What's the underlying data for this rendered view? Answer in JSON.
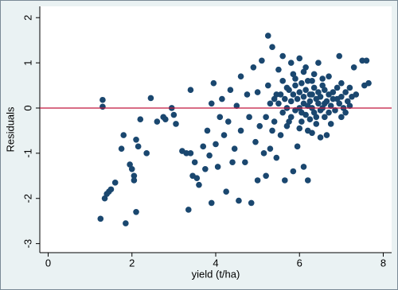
{
  "chart_data": {
    "type": "scatter",
    "x_label": "yield (t/ha)",
    "y_label": "Residuals",
    "xlim": [
      -0.2,
      8.2
    ],
    "ylim": [
      -3.2,
      2.25
    ],
    "xticks": [
      0,
      2,
      4,
      6,
      8
    ],
    "yticks": [
      -3,
      -2,
      -1,
      0,
      1,
      2
    ],
    "yline": 0,
    "yline_color": "#c0143c",
    "series": [
      {
        "color": "#1a476f",
        "x": [
          1.25,
          1.3,
          1.3,
          1.35,
          1.4,
          1.45,
          1.5,
          1.6,
          1.75,
          1.8,
          1.85,
          1.95,
          2.0,
          2.05,
          2.05,
          2.1,
          2.1,
          2.15,
          2.2,
          2.35,
          2.45,
          2.6,
          2.75,
          2.8,
          2.95,
          3.0,
          3.05,
          3.2,
          3.3,
          3.35,
          3.4,
          3.4,
          3.45,
          3.5,
          3.55,
          3.6,
          3.7,
          3.75,
          3.8,
          3.85,
          3.9,
          3.9,
          3.95,
          4.0,
          4.05,
          4.1,
          4.15,
          4.2,
          4.25,
          4.3,
          4.35,
          4.4,
          4.45,
          4.5,
          4.55,
          4.6,
          4.6,
          4.7,
          4.75,
          4.8,
          4.85,
          4.9,
          4.95,
          5.0,
          5.0,
          5.05,
          5.1,
          5.15,
          5.2,
          5.25,
          5.25,
          5.3,
          5.35,
          5.4,
          5.45,
          5.5,
          5.55,
          5.6,
          5.65,
          5.7,
          5.75,
          5.8,
          5.85,
          5.9,
          5.95,
          6.0,
          6.05,
          6.1,
          6.15,
          6.2,
          6.25,
          6.3,
          6.35,
          6.4,
          6.45,
          6.5,
          6.55,
          6.6,
          6.7,
          6.75,
          6.8,
          6.9,
          6.95,
          7.0,
          7.1,
          7.2,
          7.3,
          7.35,
          7.5,
          7.55,
          7.6,
          7.65,
          7.0,
          6.65,
          5.5,
          5.55,
          5.6,
          5.65,
          5.7,
          5.75,
          5.8,
          5.8,
          5.85,
          5.9,
          5.9,
          5.95,
          6.0,
          6.0,
          6.05,
          6.05,
          6.1,
          6.1,
          6.15,
          6.15,
          6.2,
          6.2,
          6.25,
          6.25,
          6.3,
          6.3,
          6.35,
          6.35,
          6.4,
          6.4,
          6.45,
          6.45,
          6.5,
          6.5,
          6.55,
          6.6,
          6.6,
          6.65,
          6.7,
          6.7,
          6.75,
          6.8,
          6.85,
          6.9,
          6.95,
          7.0,
          7.05,
          7.1,
          7.15,
          7.2,
          7.25,
          5.4,
          5.45,
          5.35,
          5.3,
          5.2,
          5.6,
          5.7,
          6.0,
          6.2,
          5.85,
          6.1,
          6.3,
          6.55
        ],
        "values": [
          -2.45,
          0.03,
          0.18,
          -2.0,
          -1.9,
          -1.85,
          -1.8,
          -1.65,
          -0.9,
          -0.6,
          -2.55,
          -1.25,
          -1.35,
          -1.6,
          -1.5,
          -2.3,
          -0.7,
          -0.85,
          -0.25,
          -1.0,
          0.22,
          -0.3,
          -0.2,
          -0.25,
          0.0,
          -0.15,
          -0.35,
          -0.95,
          -1.0,
          -2.25,
          -1.0,
          0.4,
          -1.5,
          -1.2,
          -1.55,
          -1.7,
          -0.85,
          -1.35,
          -0.5,
          -1.05,
          -2.1,
          0.1,
          0.55,
          -0.8,
          -1.3,
          -0.2,
          0.2,
          -0.6,
          -1.85,
          -0.3,
          0.4,
          -1.2,
          -0.9,
          0.05,
          -2.05,
          -0.5,
          0.7,
          -1.2,
          0.3,
          -0.2,
          -2.1,
          0.9,
          -0.75,
          -1.6,
          0.35,
          -0.4,
          1.05,
          -1.0,
          -1.5,
          1.6,
          0.5,
          -0.9,
          1.35,
          0.2,
          -1.1,
          0.85,
          -0.6,
          1.15,
          -1.6,
          0.45,
          -0.3,
          1.0,
          -1.4,
          0.65,
          -0.85,
          1.1,
          -0.1,
          -1.3,
          0.9,
          -1.6,
          0.3,
          -0.55,
          0.75,
          -0.2,
          1.0,
          -0.65,
          0.5,
          0.1,
          0.7,
          -0.35,
          0.35,
          0.2,
          1.15,
          0.55,
          -0.1,
          0.45,
          0.9,
          0.3,
          1.05,
          0.5,
          1.05,
          0.55,
          -0.2,
          -0.6,
          0.1,
          0.3,
          -0.1,
          0.2,
          0.0,
          0.4,
          -0.2,
          0.15,
          0.3,
          -0.05,
          0.5,
          0.2,
          0.0,
          0.35,
          -0.3,
          0.55,
          0.1,
          0.25,
          -0.15,
          0.4,
          0.05,
          0.6,
          -0.25,
          0.15,
          0.3,
          0.0,
          -0.1,
          0.45,
          0.2,
          -0.35,
          0.1,
          0.35,
          -0.05,
          0.25,
          0.0,
          0.4,
          -0.2,
          0.15,
          0.3,
          -0.1,
          0.05,
          0.2,
          -0.05,
          0.45,
          0.1,
          0.25,
          0.0,
          0.35,
          0.15,
          0.05,
          0.25,
          -0.3,
          0.3,
          -0.5,
          0.1,
          -0.2,
          0.6,
          -0.4,
          -0.45,
          -0.5,
          0.75,
          0.8,
          0.6,
          0.65
        ]
      }
    ]
  }
}
